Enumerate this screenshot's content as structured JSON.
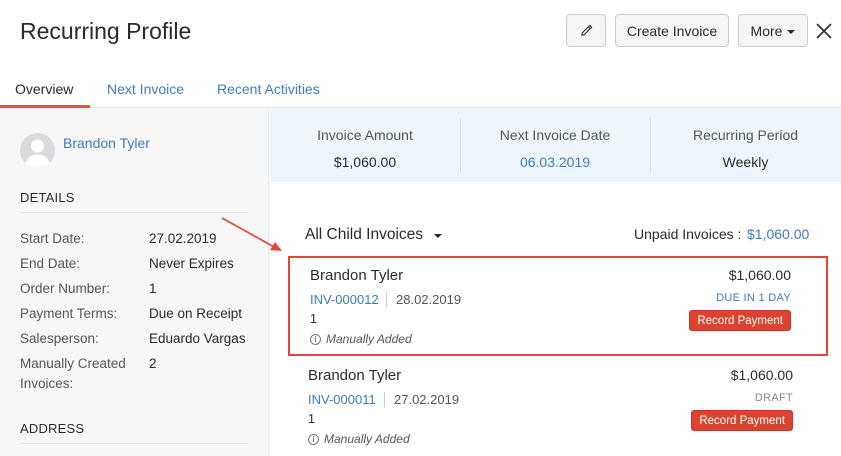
{
  "header": {
    "title": "Recurring Profile",
    "create_invoice_label": "Create Invoice",
    "more_label": "More"
  },
  "tabs": [
    {
      "label": "Overview",
      "active": true
    },
    {
      "label": "Next Invoice",
      "active": false
    },
    {
      "label": "Recent Activities",
      "active": false
    }
  ],
  "sidebar": {
    "customer_name": "Brandon Tyler",
    "details_heading": "DETAILS",
    "details": [
      {
        "label": "Start Date:",
        "value": "27.02.2019"
      },
      {
        "label": "End Date:",
        "value": "Never Expires"
      },
      {
        "label": "Order Number:",
        "value": "1"
      },
      {
        "label": "Payment Terms:",
        "value": "Due on Receipt"
      },
      {
        "label": "Salesperson:",
        "value": "Eduardo Vargas"
      },
      {
        "label": "Manually Created Invoices:",
        "value": "2"
      }
    ],
    "address_heading": "ADDRESS"
  },
  "summary": {
    "invoice_amount_label": "Invoice Amount",
    "invoice_amount_value": "$1,060.00",
    "next_invoice_date_label": "Next Invoice Date",
    "next_invoice_date_value": "06.03.2019",
    "recurring_period_label": "Recurring Period",
    "recurring_period_value": "Weekly"
  },
  "child_invoices": {
    "filter_label": "All Child Invoices",
    "unpaid_label": "Unpaid Invoices :",
    "unpaid_value": "$1,060.00",
    "items": [
      {
        "customer": "Brandon Tyler",
        "number": "INV-000012",
        "date": "28.02.2019",
        "order": "1",
        "note": "Manually Added",
        "amount": "$1,060.00",
        "status": "DUE IN 1 DAY",
        "action": "Record Payment",
        "highlighted": true
      },
      {
        "customer": "Brandon Tyler",
        "number": "INV-000011",
        "date": "27.02.2019",
        "order": "1",
        "note": "Manually Added",
        "amount": "$1,060.00",
        "status": "DRAFT",
        "action": "Record Payment",
        "highlighted": false
      }
    ]
  },
  "colors": {
    "accent": "#e0563b",
    "link": "#3e7abe",
    "summary_bg": "#eef6fc",
    "record_payment": "#d9432f",
    "highlight_border": "#e0463b"
  },
  "icons": [
    "pencil-icon",
    "close-icon",
    "avatar-icon",
    "info-icon",
    "caret-down-icon",
    "arrow-annotation"
  ]
}
